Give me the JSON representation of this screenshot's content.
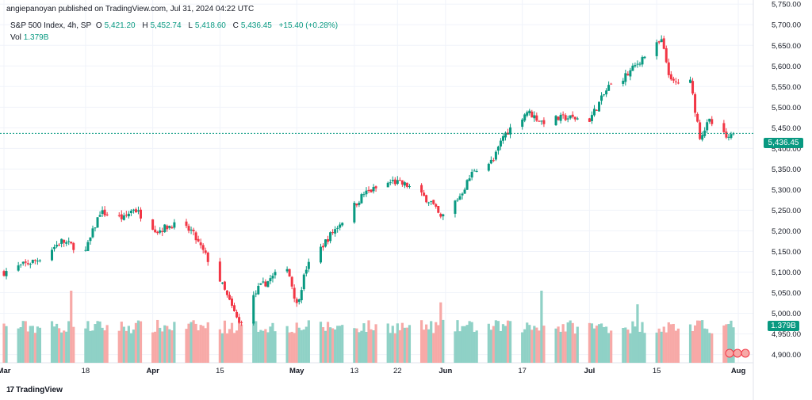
{
  "header": {
    "published": "angiepanoyan published on TradingView.com, Jul 31, 2024 04:22 UTC",
    "symbol": "S&P 500 Index, 4h, SP",
    "open_label": "O",
    "open": "5,421.20",
    "high_label": "H",
    "high": "5,452.74",
    "low_label": "L",
    "low": "5,418.60",
    "close_label": "C",
    "close": "5,436.45",
    "change": "+15.40 (+0.28%)",
    "vol_label": "Vol",
    "vol_value": "1.379B"
  },
  "price_axis": {
    "ticks": [
      "5,750.00",
      "5,700.00",
      "5,650.00",
      "5,600.00",
      "5,550.00",
      "5,500.00",
      "5,450.00",
      "5,400.00",
      "5,350.00",
      "5,300.00",
      "5,250.00",
      "5,200.00",
      "5,150.00",
      "5,100.00",
      "5,050.00",
      "5,000.00",
      "4,950.00",
      "4,900.00"
    ],
    "last_price_label": "5,436.45",
    "volume_label": "1.379B"
  },
  "time_axis": {
    "ticks": [
      {
        "label": "Mar",
        "bold": true
      },
      {
        "label": "18",
        "bold": false
      },
      {
        "label": "Apr",
        "bold": true
      },
      {
        "label": "15",
        "bold": false
      },
      {
        "label": "May",
        "bold": true
      },
      {
        "label": "13",
        "bold": false
      },
      {
        "label": "22",
        "bold": false
      },
      {
        "label": "Jun",
        "bold": true
      },
      {
        "label": "17",
        "bold": false
      },
      {
        "label": "Jul",
        "bold": true
      },
      {
        "label": "15",
        "bold": false
      },
      {
        "label": "Aug",
        "bold": true
      }
    ]
  },
  "footer": {
    "brand": "TradingView",
    "glyph": "17"
  },
  "colors": {
    "up": "#089981",
    "down": "#f23645",
    "vol_up": "#8fd1c6",
    "vol_down": "#f7a9a7",
    "grid": "#f0f3fa",
    "last_line": "#089981"
  },
  "chart_data": {
    "type": "candlestick",
    "title": "S&P 500 Index, 4h, SP",
    "x_start": "2024-03-01",
    "x_end": "2024-07-31",
    "ylim": [
      4880,
      5760
    ],
    "last_close": 5436.45,
    "anchors": [
      {
        "date": "2024-03-01",
        "close": 5100
      },
      {
        "date": "2024-03-08",
        "close": 5130
      },
      {
        "date": "2024-03-13",
        "close": 5175
      },
      {
        "date": "2024-03-18",
        "close": 5150
      },
      {
        "date": "2024-03-21",
        "close": 5245
      },
      {
        "date": "2024-03-26",
        "close": 5230
      },
      {
        "date": "2024-03-28",
        "close": 5255
      },
      {
        "date": "2024-04-02",
        "close": 5200
      },
      {
        "date": "2024-04-05",
        "close": 5215
      },
      {
        "date": "2024-04-09",
        "close": 5200
      },
      {
        "date": "2024-04-12",
        "close": 5140
      },
      {
        "date": "2024-04-15",
        "close": 5080
      },
      {
        "date": "2024-04-19",
        "close": 4975
      },
      {
        "date": "2024-04-23",
        "close": 5060
      },
      {
        "date": "2024-04-29",
        "close": 5115
      },
      {
        "date": "2024-05-01",
        "close": 5020
      },
      {
        "date": "2024-05-03",
        "close": 5110
      },
      {
        "date": "2024-05-08",
        "close": 5190
      },
      {
        "date": "2024-05-15",
        "close": 5290
      },
      {
        "date": "2024-05-21",
        "close": 5320
      },
      {
        "date": "2024-05-24",
        "close": 5310
      },
      {
        "date": "2024-05-29",
        "close": 5270
      },
      {
        "date": "2024-05-31",
        "close": 5230
      },
      {
        "date": "2024-06-04",
        "close": 5285
      },
      {
        "date": "2024-06-07",
        "close": 5350
      },
      {
        "date": "2024-06-11",
        "close": 5370
      },
      {
        "date": "2024-06-13",
        "close": 5430
      },
      {
        "date": "2024-06-18",
        "close": 5490
      },
      {
        "date": "2024-06-21",
        "close": 5465
      },
      {
        "date": "2024-06-26",
        "close": 5475
      },
      {
        "date": "2024-07-01",
        "close": 5470
      },
      {
        "date": "2024-07-05",
        "close": 5550
      },
      {
        "date": "2024-07-09",
        "close": 5580
      },
      {
        "date": "2024-07-12",
        "close": 5620
      },
      {
        "date": "2024-07-16",
        "close": 5660
      },
      {
        "date": "2024-07-18",
        "close": 5560
      },
      {
        "date": "2024-07-22",
        "close": 5560
      },
      {
        "date": "2024-07-24",
        "close": 5430
      },
      {
        "date": "2024-07-26",
        "close": 5465
      },
      {
        "date": "2024-07-30",
        "close": 5420
      },
      {
        "date": "2024-07-31",
        "close": 5436.45
      }
    ],
    "volume_highlights": [
      {
        "date": "2024-03-15",
        "volume": 1.85
      },
      {
        "date": "2024-05-31",
        "volume": 1.55
      },
      {
        "date": "2024-06-21",
        "volume": 1.85
      },
      {
        "date": "2024-07-11",
        "volume": 1.5
      }
    ]
  }
}
